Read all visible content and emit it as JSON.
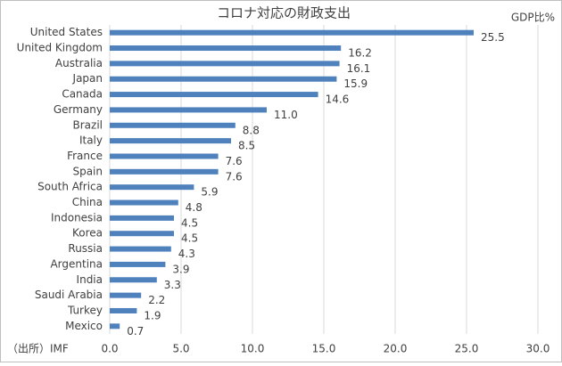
{
  "chart_data": {
    "type": "bar",
    "orientation": "horizontal",
    "title": "コロナ対応の財政支出",
    "unit_label": "GDP比%",
    "source": "（出所）IMF",
    "categories": [
      "United States",
      "United Kingdom",
      "Australia",
      "Japan",
      "Canada",
      "Germany",
      "Brazil",
      "Italy",
      "France",
      "Spain",
      "South Africa",
      "China",
      "Indonesia",
      "Korea",
      "Russia",
      "Argentina",
      "India",
      "Saudi Arabia",
      "Turkey",
      "Mexico"
    ],
    "values": [
      25.5,
      16.2,
      16.1,
      15.9,
      14.6,
      11.0,
      8.8,
      8.5,
      7.6,
      7.6,
      5.9,
      4.8,
      4.5,
      4.5,
      4.3,
      3.9,
      3.3,
      2.2,
      1.9,
      0.7
    ],
    "value_labels": [
      "25.5",
      "16.2",
      "16.1",
      "15.9",
      "14.6",
      "11.0",
      "8.8",
      "8.5",
      "7.6",
      "7.6",
      "5.9",
      "4.8",
      "4.5",
      "4.5",
      "4.3",
      "3.9",
      "3.3",
      "2.2",
      "1.9",
      "0.7"
    ],
    "color": "#4f81bd",
    "xlim": [
      0,
      30
    ],
    "xticks": [
      {
        "value": 0,
        "label": "0.0"
      },
      {
        "value": 5,
        "label": "5.0"
      },
      {
        "value": 10,
        "label": "10.0"
      },
      {
        "value": 15,
        "label": "15.0"
      },
      {
        "value": 20,
        "label": "20.0"
      },
      {
        "value": 25,
        "label": "25.0"
      },
      {
        "value": 30,
        "label": "30.0"
      }
    ],
    "grid": true
  }
}
